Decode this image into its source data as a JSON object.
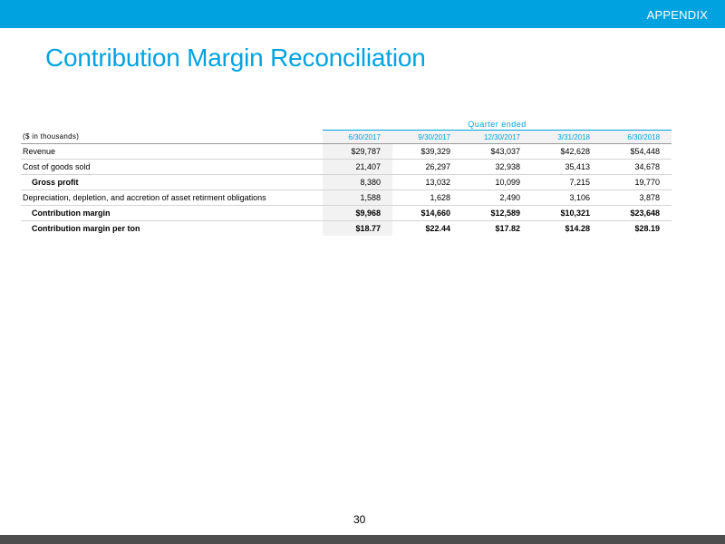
{
  "header": {
    "section_label": "APPENDIX"
  },
  "title": "Contribution Margin Reconciliation",
  "table": {
    "group_header": "Quarter ended",
    "units_label": "($ in thousands)",
    "columns": [
      "6/30/2017",
      "9/30/2017",
      "12/30/2017",
      "3/31/2018",
      "6/30/2018"
    ],
    "rows": [
      {
        "label": "Revenue",
        "values": [
          "$29,787",
          "$39,329",
          "$43,037",
          "$42,628",
          "$54,448"
        ]
      },
      {
        "label": "Cost of goods sold",
        "values": [
          "21,407",
          "26,297",
          "32,938",
          "35,413",
          "34,678"
        ]
      },
      {
        "label": "Gross profit",
        "values": [
          "8,380",
          "13,032",
          "10,099",
          "7,215",
          "19,770"
        ]
      },
      {
        "label": "Depreciation, depletion, and accretion of asset retirment obligations",
        "values": [
          "1,588",
          "1,628",
          "2,490",
          "3,106",
          "3,878"
        ]
      },
      {
        "label": "Contribution margin",
        "values": [
          "$9,968",
          "$14,660",
          "$12,589",
          "$10,321",
          "$23,648"
        ]
      },
      {
        "label": "Contribution margin per ton",
        "values": [
          "$18.77",
          "$22.44",
          "$17.82",
          "$14.28",
          "$28.19"
        ]
      }
    ]
  },
  "footer": {
    "page_number": "30"
  },
  "colors": {
    "accent": "#00a3e0",
    "footer_band": "#4d4d4d",
    "column_shade": "#f2f2f2"
  }
}
